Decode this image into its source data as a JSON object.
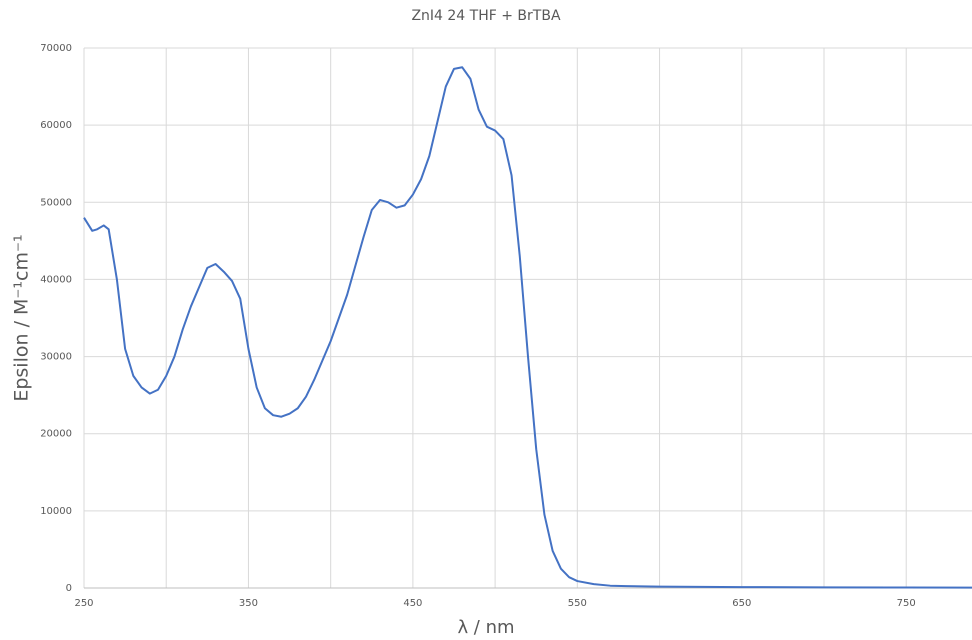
{
  "chart_data": {
    "type": "line",
    "title": "ZnI4 24 THF + BrTBA",
    "x_label": "λ / nm",
    "y_label": "Epsilon / M⁻¹cm⁻¹",
    "x": [
      250,
      255,
      258,
      262,
      265,
      270,
      275,
      280,
      285,
      290,
      295,
      300,
      305,
      310,
      315,
      320,
      325,
      330,
      335,
      340,
      345,
      350,
      355,
      360,
      365,
      370,
      375,
      380,
      385,
      390,
      400,
      410,
      420,
      425,
      430,
      435,
      440,
      445,
      450,
      455,
      460,
      465,
      470,
      475,
      480,
      485,
      490,
      495,
      500,
      505,
      510,
      515,
      520,
      525,
      530,
      535,
      540,
      545,
      550,
      560,
      570,
      580,
      600,
      650,
      700,
      750,
      790
    ],
    "series": [
      {
        "name": "ZnI4 24 THF + BrTBA",
        "color": "#4472c4",
        "values": [
          48000,
          46300,
          46500,
          47000,
          46500,
          40000,
          31000,
          27500,
          26000,
          25200,
          25700,
          27500,
          30000,
          33500,
          36500,
          39000,
          41500,
          42000,
          41000,
          39800,
          37500,
          31000,
          26000,
          23300,
          22400,
          22200,
          22600,
          23300,
          24800,
          27000,
          32000,
          38000,
          45500,
          49000,
          50300,
          50000,
          49300,
          49600,
          51000,
          53000,
          56000,
          60500,
          65000,
          67300,
          67500,
          66000,
          62000,
          59800,
          59300,
          58200,
          53500,
          43000,
          30000,
          18000,
          9500,
          4800,
          2500,
          1400,
          900,
          500,
          300,
          250,
          180,
          120,
          80,
          60,
          50
        ]
      }
    ],
    "xlim": [
      250,
      790
    ],
    "ylim": [
      0,
      70000
    ],
    "xticks": [
      250,
      350,
      450,
      550,
      650,
      750
    ],
    "yticks": [
      0,
      10000,
      20000,
      30000,
      40000,
      50000,
      60000,
      70000
    ],
    "grid": true
  }
}
